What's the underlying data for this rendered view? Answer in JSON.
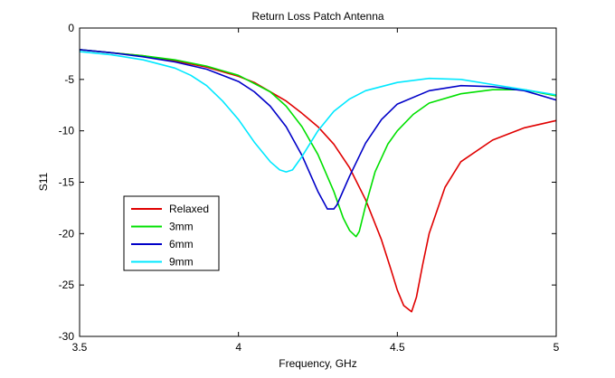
{
  "chart_data": {
    "type": "line",
    "title": "Return Loss Patch Antenna",
    "xlabel": "Frequency, GHz",
    "ylabel": "S11",
    "xlim": [
      3.5,
      5
    ],
    "ylim": [
      -30,
      0
    ],
    "xticks": [
      3.5,
      4,
      4.5,
      5
    ],
    "yticks": [
      0,
      -5,
      -10,
      -15,
      -20,
      -25,
      -30
    ],
    "grid": false,
    "legend_position": "bottom-left",
    "series": [
      {
        "name": "Relaxed",
        "color": "#e00000",
        "x": [
          3.5,
          3.6,
          3.7,
          3.8,
          3.9,
          4.0,
          4.05,
          4.1,
          4.15,
          4.2,
          4.25,
          4.3,
          4.35,
          4.4,
          4.45,
          4.48,
          4.5,
          4.52,
          4.545,
          4.56,
          4.58,
          4.6,
          4.65,
          4.7,
          4.8,
          4.9,
          5.0
        ],
        "y": [
          -2.1,
          -2.4,
          -2.7,
          -3.2,
          -3.8,
          -4.7,
          -5.3,
          -6.2,
          -7.1,
          -8.3,
          -9.6,
          -11.3,
          -13.6,
          -16.7,
          -20.6,
          -23.5,
          -25.5,
          -27.0,
          -27.6,
          -26.2,
          -23.0,
          -20.0,
          -15.5,
          -13.0,
          -10.9,
          -9.7,
          -9.0
        ]
      },
      {
        "name": "3mm",
        "color": "#00e000",
        "x": [
          3.5,
          3.6,
          3.7,
          3.8,
          3.9,
          4.0,
          4.1,
          4.15,
          4.2,
          4.25,
          4.3,
          4.33,
          4.35,
          4.37,
          4.38,
          4.4,
          4.43,
          4.47,
          4.5,
          4.55,
          4.6,
          4.7,
          4.8,
          4.9,
          5.0
        ],
        "y": [
          -2.1,
          -2.4,
          -2.7,
          -3.1,
          -3.7,
          -4.6,
          -6.2,
          -7.6,
          -9.6,
          -12.3,
          -15.9,
          -18.5,
          -19.7,
          -20.3,
          -19.8,
          -17.3,
          -14.0,
          -11.3,
          -10.0,
          -8.4,
          -7.3,
          -6.4,
          -6.0,
          -6.0,
          -6.6
        ]
      },
      {
        "name": "6mm",
        "color": "#0000c8",
        "x": [
          3.5,
          3.6,
          3.7,
          3.8,
          3.9,
          4.0,
          4.05,
          4.1,
          4.15,
          4.2,
          4.25,
          4.28,
          4.3,
          4.31,
          4.35,
          4.4,
          4.45,
          4.5,
          4.6,
          4.7,
          4.8,
          4.9,
          5.0
        ],
        "y": [
          -2.1,
          -2.4,
          -2.8,
          -3.3,
          -4.0,
          -5.2,
          -6.2,
          -7.6,
          -9.6,
          -12.4,
          -15.9,
          -17.6,
          -17.6,
          -17.2,
          -14.4,
          -11.2,
          -8.9,
          -7.4,
          -6.1,
          -5.6,
          -5.7,
          -6.1,
          -7.0
        ]
      },
      {
        "name": "9mm",
        "color": "#00e8ff",
        "x": [
          3.5,
          3.6,
          3.7,
          3.8,
          3.85,
          3.9,
          3.95,
          4.0,
          4.05,
          4.1,
          4.13,
          4.15,
          4.17,
          4.2,
          4.25,
          4.3,
          4.35,
          4.4,
          4.5,
          4.6,
          4.7,
          4.8,
          4.9,
          5.0
        ],
        "y": [
          -2.3,
          -2.6,
          -3.1,
          -3.9,
          -4.6,
          -5.6,
          -7.1,
          -8.9,
          -11.1,
          -13.0,
          -13.8,
          -14.0,
          -13.8,
          -12.5,
          -10.0,
          -8.1,
          -6.9,
          -6.1,
          -5.3,
          -4.9,
          -5.0,
          -5.5,
          -6.0,
          -6.5
        ]
      }
    ]
  }
}
